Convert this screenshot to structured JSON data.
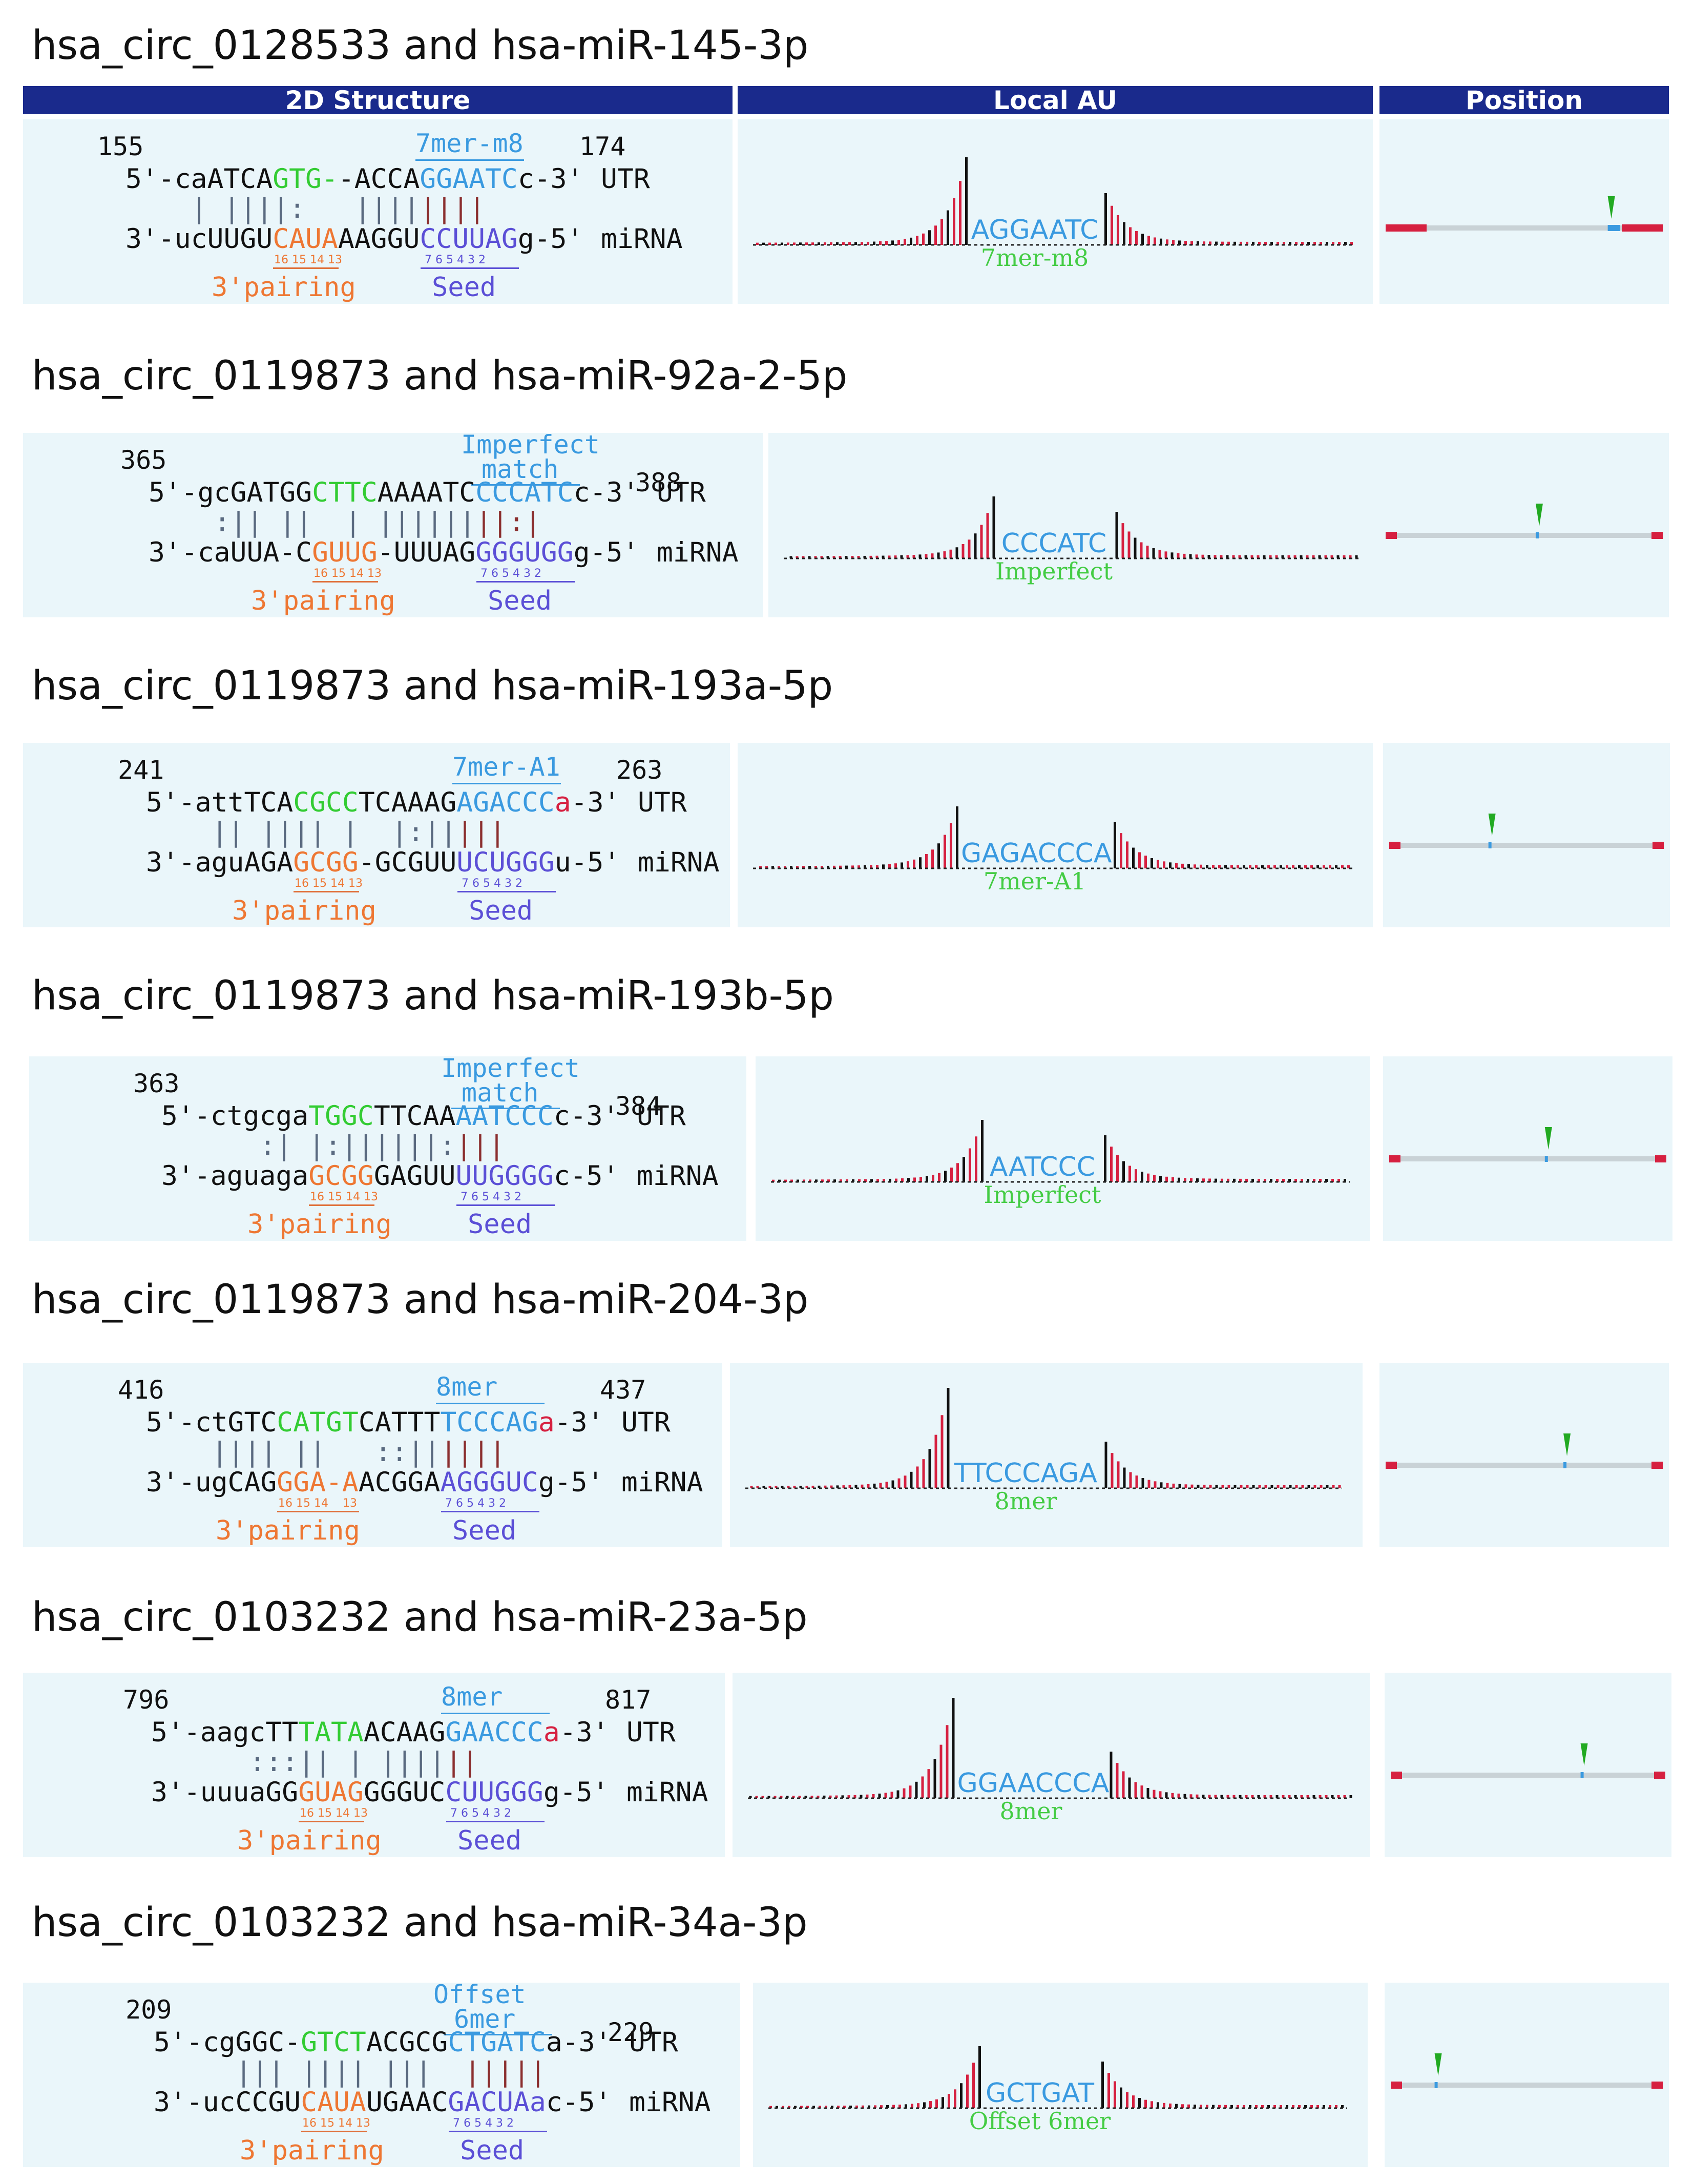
{
  "headers": {
    "structure": "2D Structure",
    "local_au": "Local AU",
    "position": "Position"
  },
  "labels": {
    "utr": "UTR",
    "mirna": "miRNA",
    "pairing": "3'pairing",
    "seed": "Seed",
    "seed_digits": "7 6 5 4 3 2",
    "pair_digits": "16 15 14 13",
    "pair_digits_alt": "16 15 14    13"
  },
  "colors": {
    "header": "#1a2a8c",
    "panel": "#eaf6fa",
    "pairing3": "#ee7733",
    "supplementary": "#33cc33",
    "site": "#3a9ae0",
    "seed": "#5b4fd6",
    "au_high": "#d62040",
    "au_low": "#111111",
    "bond": "#8b2f2f"
  },
  "entries": [
    {
      "title": "hsa_circ_0128533 and hsa-miR-145-3p",
      "start": "155",
      "end": "174",
      "type1": "7mer-m8",
      "type2": "",
      "utr": [
        [
          "5'-caATCA",
          ""
        ],
        [
          "GTG-",
          "grn"
        ],
        [
          "-ACCA",
          ""
        ],
        [
          "GGAATC",
          "blu"
        ],
        [
          "c-3'",
          ""
        ]
      ],
      "pairs": "    | ||||:   ||||||||",
      "mir": [
        [
          "3'-ucUUGU",
          ""
        ],
        [
          "CAUA",
          "org"
        ],
        [
          "AAGGU",
          ""
        ],
        [
          "CCUUAG",
          "pur"
        ],
        [
          "g-5'",
          ""
        ]
      ],
      "au_site": "AGGAATC",
      "au_type": "7mer-m8",
      "marker": 0.82
    },
    {
      "title": "hsa_circ_0119873 and hsa-miR-92a-2-5p",
      "start": "365",
      "end": "388",
      "type1": "Imperfect",
      "type2": "match",
      "utr": [
        [
          "5'-gcGATGG",
          ""
        ],
        [
          "CTTC",
          "grn"
        ],
        [
          "AAAATC",
          ""
        ],
        [
          "CCCATC",
          "blu"
        ],
        [
          "c-3'",
          ""
        ]
      ],
      "pairs": "    :|| ||  | ||||||||:|",
      "mir": [
        [
          "3'-caUUA-C",
          ""
        ],
        [
          "GUUG",
          "org"
        ],
        [
          "-UUUAG",
          ""
        ],
        [
          "GGGUGG",
          "pur"
        ],
        [
          "g-5'",
          ""
        ]
      ],
      "au_site": "CCCATC",
      "au_type": "Imperfect",
      "marker": 0.56
    },
    {
      "title": "hsa_circ_0119873 and hsa-miR-193a-5p",
      "start": "241",
      "end": "263",
      "type1": "7mer-A1",
      "type2": "",
      "utr": [
        [
          "5'-attTCA",
          ""
        ],
        [
          "CGCC",
          "grn"
        ],
        [
          "TCAAAG",
          ""
        ],
        [
          "AGACCC",
          "blu"
        ],
        [
          "a",
          "red"
        ],
        [
          "-3'",
          ""
        ]
      ],
      "pairs": "    || |||| |  |:|||||",
      "mir": [
        [
          "3'-aguAGA",
          ""
        ],
        [
          "GCGG",
          "org"
        ],
        [
          "-GCGUU",
          ""
        ],
        [
          "UCUGGG",
          "pur"
        ],
        [
          "u-5'",
          ""
        ]
      ],
      "au_site": "GAGACCCA",
      "au_type": "7mer-A1",
      "marker": 0.38
    },
    {
      "title": "hsa_circ_0119873 and hsa-miR-193b-5p",
      "start": "363",
      "end": "384",
      "type1": "Imperfect",
      "type2": "match",
      "utr": [
        [
          "5'-ctgcga",
          ""
        ],
        [
          "TGGC",
          "grn"
        ],
        [
          "TTCAA",
          ""
        ],
        [
          "AATCCC",
          "blu"
        ],
        [
          "c-3'",
          ""
        ]
      ],
      "pairs": "      :| |:||||||:|||",
      "mir": [
        [
          "3'-aguaga",
          ""
        ],
        [
          "GCGG",
          "org"
        ],
        [
          "GAGUU",
          ""
        ],
        [
          "UUGGGG",
          "pur"
        ],
        [
          "c-5'",
          ""
        ]
      ],
      "au_site": "AATCCC",
      "au_type": "Imperfect",
      "marker": 0.58
    },
    {
      "title": "hsa_circ_0119873 and hsa-miR-204-3p",
      "start": "416",
      "end": "437",
      "type1": "8mer",
      "type2": "",
      "utr": [
        [
          "5'-ctGTC",
          ""
        ],
        [
          "CATGT",
          "grn"
        ],
        [
          "CATTT",
          ""
        ],
        [
          "TCCCAG",
          "blu"
        ],
        [
          "a",
          "red"
        ],
        [
          "-3'",
          ""
        ]
      ],
      "pairs": "    |||| ||   ::||||||",
      "mir": [
        [
          "3'-ugCAG",
          ""
        ],
        [
          "GGA-A",
          "org"
        ],
        [
          "ACGGA",
          ""
        ],
        [
          "AGGGUC",
          "pur"
        ],
        [
          "g-5'",
          ""
        ]
      ],
      "au_site": "TTCCCAGA",
      "au_type": "8mer",
      "marker": 0.66
    },
    {
      "title": "hsa_circ_0103232 and hsa-miR-23a-5p",
      "start": "796",
      "end": "817",
      "type1": "8mer",
      "type2": "",
      "utr": [
        [
          "5'-aagcTT",
          ""
        ],
        [
          "TATA",
          "grn"
        ],
        [
          "ACAAG",
          ""
        ],
        [
          "GAACCC",
          "blu"
        ],
        [
          "a",
          "red"
        ],
        [
          "-3'",
          ""
        ]
      ],
      "pairs": "      :::|| | ||||||",
      "mir": [
        [
          "3'-uuuaGG",
          ""
        ],
        [
          "GUAG",
          "org"
        ],
        [
          "GGGUC",
          ""
        ],
        [
          "CUUGGG",
          "pur"
        ],
        [
          "g-5'",
          ""
        ]
      ],
      "au_site": "GGAACCCA",
      "au_type": "8mer",
      "marker": 0.71
    },
    {
      "title": "hsa_circ_0103232 and hsa-miR-34a-3p",
      "start": "209",
      "end": "229",
      "type1": "Offset",
      "type2": "6mer",
      "utr": [
        [
          "5'-cgGGC-",
          ""
        ],
        [
          "GTCT",
          "grn"
        ],
        [
          "ACGCG",
          ""
        ],
        [
          "CTGATC",
          "blu"
        ],
        [
          "a-3'",
          ""
        ]
      ],
      "pairs": "     ||| |||| |||  |||||",
      "mir": [
        [
          "3'-ucCCGU",
          ""
        ],
        [
          "CAUA",
          "org"
        ],
        [
          "UGAAC",
          ""
        ],
        [
          "GACUAa",
          "pur"
        ],
        [
          "c-5'",
          ""
        ]
      ],
      "au_site": "GCTGAT",
      "au_type": "Offset 6mer",
      "marker": 0.18
    }
  ]
}
